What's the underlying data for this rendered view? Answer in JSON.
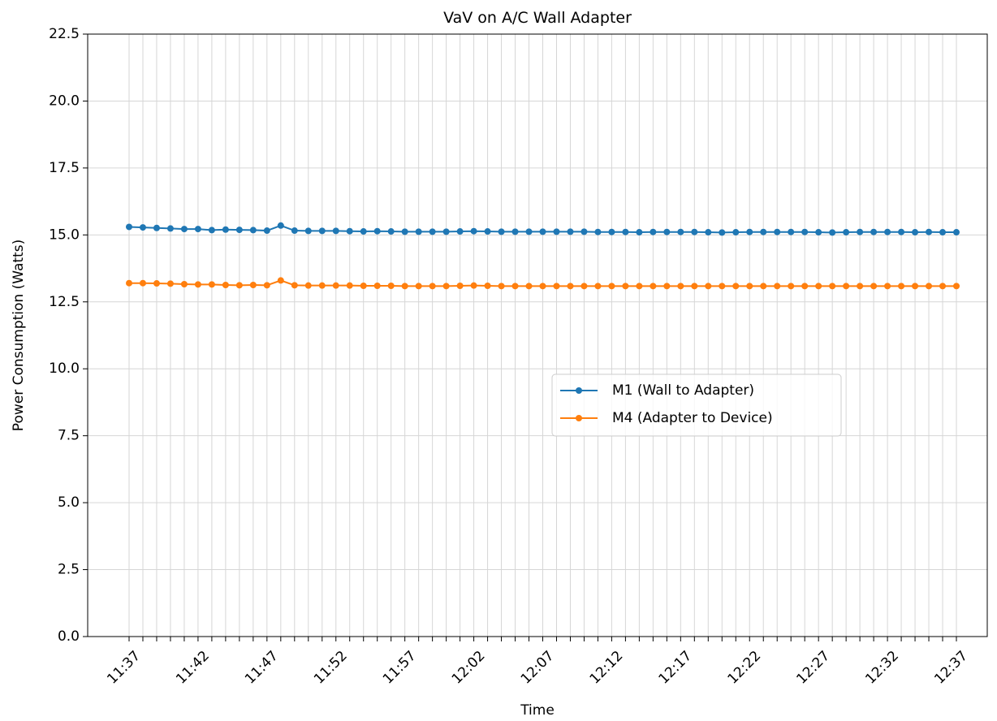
{
  "chart_data": {
    "type": "line",
    "title": "VaV on A/C Wall Adapter",
    "x_label": "Time",
    "y_label": "Power Consumption (Watts)",
    "categories": [
      "11:37",
      null,
      null,
      null,
      null,
      "11:42",
      null,
      null,
      null,
      null,
      "11:47",
      null,
      null,
      null,
      null,
      "11:52",
      null,
      null,
      null,
      null,
      "11:57",
      null,
      null,
      null,
      null,
      "12:02",
      null,
      null,
      null,
      null,
      "12:07",
      null,
      null,
      null,
      null,
      "12:12",
      null,
      null,
      null,
      null,
      "12:17",
      null,
      null,
      null,
      null,
      "12:22",
      null,
      null,
      null,
      null,
      "12:27",
      null,
      null,
      null,
      null,
      "12:32",
      null,
      null,
      null,
      null,
      "12:37"
    ],
    "series": [
      {
        "name": "M1 (Wall to Adapter)",
        "color": "#1f77b4",
        "values": [
          15.3,
          15.28,
          15.26,
          15.24,
          15.22,
          15.22,
          15.18,
          15.2,
          15.19,
          15.18,
          15.16,
          15.35,
          15.16,
          15.15,
          15.15,
          15.15,
          15.14,
          15.13,
          15.14,
          15.13,
          15.12,
          15.12,
          15.12,
          15.12,
          15.13,
          15.14,
          15.13,
          15.12,
          15.12,
          15.12,
          15.12,
          15.12,
          15.12,
          15.12,
          15.11,
          15.11,
          15.11,
          15.1,
          15.11,
          15.11,
          15.11,
          15.11,
          15.1,
          15.09,
          15.1,
          15.11,
          15.11,
          15.11,
          15.11,
          15.11,
          15.1,
          15.09,
          15.1,
          15.11,
          15.11,
          15.11,
          15.11,
          15.1,
          15.11,
          15.1,
          15.1
        ]
      },
      {
        "name": "M4 (Adapter to Device)",
        "color": "#ff7f0e",
        "values": [
          13.2,
          13.2,
          13.19,
          13.18,
          13.16,
          13.15,
          13.15,
          13.13,
          13.12,
          13.13,
          13.12,
          13.3,
          13.12,
          13.11,
          13.11,
          13.11,
          13.11,
          13.1,
          13.1,
          13.1,
          13.09,
          13.09,
          13.09,
          13.09,
          13.1,
          13.11,
          13.1,
          13.09,
          13.09,
          13.09,
          13.09,
          13.09,
          13.09,
          13.09,
          13.09,
          13.09,
          13.09,
          13.09,
          13.09,
          13.09,
          13.09,
          13.09,
          13.09,
          13.09,
          13.09,
          13.09,
          13.09,
          13.09,
          13.09,
          13.09,
          13.09,
          13.09,
          13.09,
          13.09,
          13.09,
          13.09,
          13.09,
          13.09,
          13.09,
          13.09,
          13.09
        ]
      }
    ],
    "ylim": [
      0,
      22.5
    ],
    "yticks": [
      {
        "value": 0,
        "label": "0.0"
      },
      2.5,
      {
        "value": 5,
        "label": "5.0"
      },
      7.5,
      {
        "value": 10,
        "label": "10.0"
      },
      12.5,
      {
        "value": 15,
        "label": "15.0"
      },
      17.5,
      {
        "value": 20,
        "label": "20.0"
      },
      22.5
    ],
    "grid": true
  }
}
